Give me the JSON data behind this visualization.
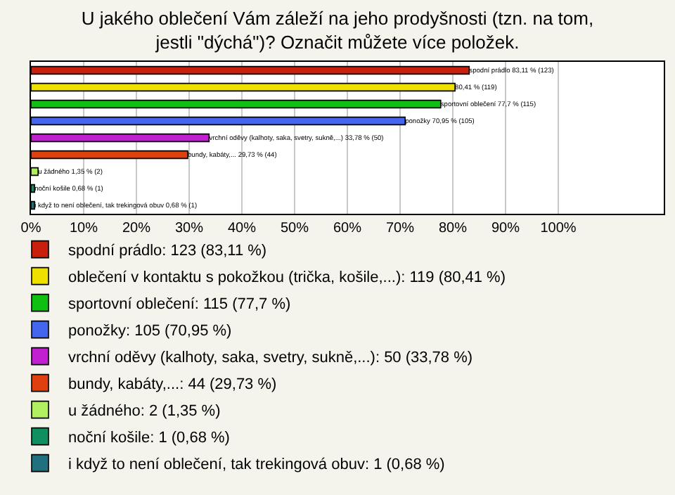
{
  "chart_data": {
    "type": "bar",
    "orientation": "horizontal",
    "title": "U jakého oblečení Vám záleží na jeho prodyšnosti (tzn. na tom, jestli \"dýchá\")? Označit můžete více položek.",
    "categories": [
      null,
      null,
      null,
      null,
      null,
      null,
      null,
      null,
      null
    ],
    "series": [
      {
        "name": "spodní prádlo: 123 (83,11 %)",
        "color": "#c8200c",
        "values": [
          83.11,
          null,
          null,
          null,
          null,
          null,
          null,
          null,
          null
        ],
        "value_labels": [
          "spodní prádlo 83,11 % (123)",
          null,
          null,
          null,
          null,
          null,
          null,
          null,
          null
        ]
      },
      {
        "name": "oblečení v kontaktu s pokožkou (trička, košile,...): 119 (80,41 %)",
        "color": "#f0e000",
        "values": [
          null,
          80.41,
          null,
          null,
          null,
          null,
          null,
          null,
          null
        ],
        "value_labels": [
          null,
          "80,41 % (119)",
          null,
          null,
          null,
          null,
          null,
          null,
          null
        ]
      },
      {
        "name": "sportovní oblečení: 115 (77,7 %)",
        "color": "#10c010",
        "values": [
          null,
          null,
          77.7,
          null,
          null,
          null,
          null,
          null,
          null
        ],
        "value_labels": [
          null,
          null,
          "sportovní oblečení 77,7 % (115)",
          null,
          null,
          null,
          null,
          null,
          null
        ]
      },
      {
        "name": "ponožky: 105 (70,95 %)",
        "color": "#4466ee",
        "values": [
          null,
          null,
          null,
          70.95,
          null,
          null,
          null,
          null,
          null
        ],
        "value_labels": [
          null,
          null,
          null,
          "ponožky 70,95 % (105)",
          null,
          null,
          null,
          null,
          null
        ]
      },
      {
        "name": "vrchní oděvy (kalhoty, saka, svetry, sukně,...): 50 (33,78 %)",
        "color": "#c020d0",
        "values": [
          null,
          null,
          null,
          null,
          33.78,
          null,
          null,
          null,
          null
        ],
        "value_labels": [
          null,
          null,
          null,
          null,
          "vrchní oděvy (kalhoty, saka, svetry, sukně,...) 33,78 % (50)",
          null,
          null,
          null,
          null
        ]
      },
      {
        "name": "bundy, kabáty,...: 44 (29,73 %)",
        "color": "#e04010",
        "values": [
          null,
          null,
          null,
          null,
          null,
          29.73,
          null,
          null,
          null
        ],
        "value_labels": [
          null,
          null,
          null,
          null,
          null,
          "bundy, kabáty,... 29,73 % (44)",
          null,
          null,
          null
        ]
      },
      {
        "name": "u žádného: 2 (1,35 %)",
        "color": "#b0f060",
        "values": [
          null,
          null,
          null,
          null,
          null,
          null,
          1.35,
          null,
          null
        ],
        "value_labels": [
          null,
          null,
          null,
          null,
          null,
          null,
          "u žádného 1,35 % (2)",
          null,
          null
        ]
      },
      {
        "name": "noční košile: 1 (0,68 %)",
        "color": "#109060",
        "values": [
          null,
          null,
          null,
          null,
          null,
          null,
          null,
          0.68,
          null
        ],
        "value_labels": [
          null,
          null,
          null,
          null,
          null,
          null,
          null,
          "noční košile 0,68 % (1)",
          null
        ]
      },
      {
        "name": "i když to není oblečení, tak trekingová obuv: 1 (0,68 %)",
        "color": "#207080",
        "values": [
          null,
          null,
          null,
          null,
          null,
          null,
          null,
          null,
          0.68
        ],
        "value_labels": [
          null,
          null,
          null,
          null,
          null,
          null,
          null,
          null,
          "i když to není oblečení, tak trekingová obuv 0,68 % (1)"
        ]
      }
    ],
    "xlim": [
      0,
      120
    ],
    "xticks": [
      {
        "value": 0,
        "label": "0%"
      },
      {
        "value": 10,
        "label": "10%"
      },
      {
        "value": 20,
        "label": "20%"
      },
      {
        "value": 30,
        "label": "30%"
      },
      {
        "value": 40,
        "label": "40%"
      },
      {
        "value": 50,
        "label": "50%"
      },
      {
        "value": 60,
        "label": "60%"
      },
      {
        "value": 70,
        "label": "70%"
      },
      {
        "value": 80,
        "label": "80%"
      },
      {
        "value": 90,
        "label": "90%"
      },
      {
        "value": 100,
        "label": "100%"
      }
    ],
    "grid": "x",
    "legend": "bottom",
    "tick_labels": "x"
  }
}
